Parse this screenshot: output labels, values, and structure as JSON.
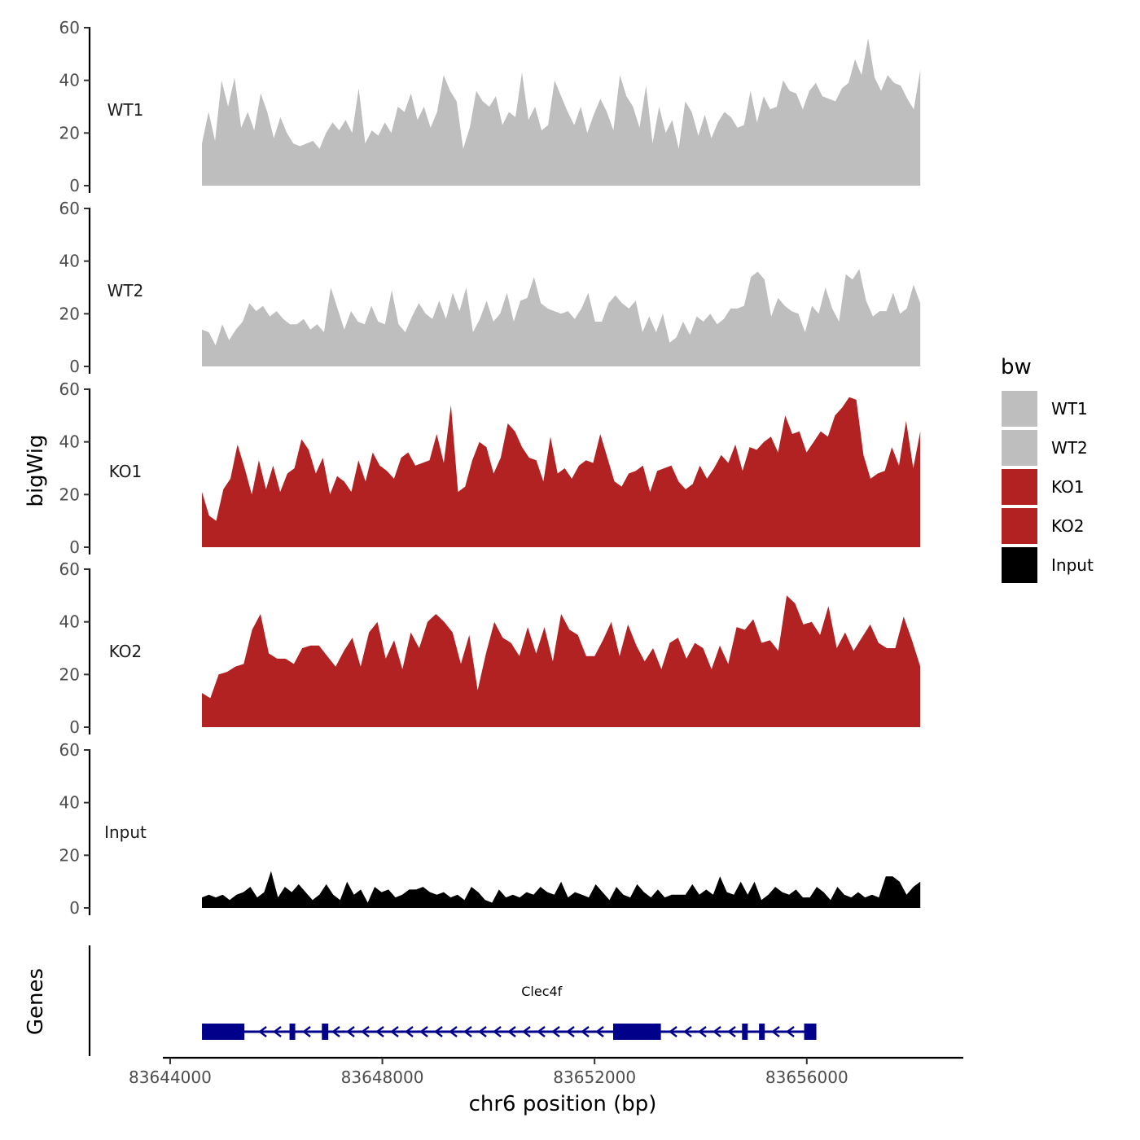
{
  "chart_data": {
    "type": "area",
    "ylabel": "bigWig",
    "xlabel": "chr6 position (bp)",
    "genes_label": "Genes",
    "xlim": [
      83643970,
      83658950
    ],
    "x_ticks": [
      {
        "value": 83644000,
        "label": "83644000"
      },
      {
        "value": 83648000,
        "label": "83648000"
      },
      {
        "value": 83652000,
        "label": "83652000"
      },
      {
        "value": 83656000,
        "label": "83656000"
      }
    ],
    "y_ticks": [
      0,
      20,
      40,
      60
    ],
    "ylim": [
      0,
      60
    ],
    "signal_start": 83644600,
    "signal_end": 83658140,
    "legend": {
      "title": "bw",
      "entries": [
        {
          "label": "WT1",
          "color": "#bebebe"
        },
        {
          "label": "WT2",
          "color": "#bebebe"
        },
        {
          "label": "KO1",
          "color": "#b22222"
        },
        {
          "label": "KO2",
          "color": "#b22222"
        },
        {
          "label": "Input",
          "color": "#000000"
        }
      ]
    },
    "series": [
      {
        "name": "WT1",
        "color": "#bebebe",
        "values": [
          16,
          28,
          17,
          40,
          30,
          41,
          22,
          28,
          21,
          35,
          28,
          18,
          26,
          20,
          16,
          15,
          16,
          17,
          14,
          20,
          24,
          21,
          25,
          20,
          37,
          16,
          21,
          19,
          24,
          20,
          30,
          28,
          35,
          25,
          30,
          22,
          28,
          42,
          36,
          32,
          14,
          22,
          36,
          32,
          30,
          34,
          23,
          28,
          26,
          43,
          25,
          30,
          21,
          23,
          40,
          34,
          28,
          23,
          30,
          20,
          27,
          33,
          28,
          21,
          42,
          34,
          30,
          22,
          38,
          16,
          30,
          20,
          25,
          14,
          32,
          28,
          19,
          27,
          18,
          24,
          28,
          26,
          22,
          23,
          36,
          24,
          34,
          29,
          30,
          40,
          36,
          35,
          29,
          36,
          39,
          34,
          33,
          32,
          37,
          39,
          48,
          42,
          56,
          41,
          36,
          42,
          39,
          38,
          33,
          29,
          44
        ]
      },
      {
        "name": "WT2",
        "color": "#bebebe",
        "values": [
          14,
          13,
          8,
          16,
          10,
          14,
          17,
          24,
          21,
          23,
          19,
          21,
          18,
          16,
          16,
          18,
          14,
          16,
          13,
          30,
          22,
          14,
          21,
          17,
          16,
          23,
          17,
          16,
          29,
          16,
          13,
          19,
          24,
          20,
          18,
          25,
          18,
          28,
          21,
          30,
          13,
          18,
          25,
          17,
          20,
          28,
          17,
          25,
          26,
          34,
          24,
          22,
          21,
          20,
          21,
          18,
          22,
          28,
          17,
          17,
          24,
          27,
          24,
          22,
          25,
          13,
          19,
          13,
          20,
          9,
          11,
          17,
          12,
          19,
          17,
          20,
          16,
          18,
          22,
          22,
          23,
          34,
          36,
          33,
          19,
          26,
          23,
          21,
          20,
          13,
          23,
          20,
          30,
          22,
          17,
          35,
          33,
          37,
          25,
          19,
          21,
          21,
          28,
          20,
          22,
          31,
          24
        ]
      },
      {
        "name": "KO1",
        "color": "#b22222",
        "values": [
          21,
          12,
          10,
          22,
          26,
          39,
          30,
          20,
          33,
          22,
          31,
          21,
          28,
          30,
          41,
          37,
          28,
          34,
          20,
          27,
          25,
          21,
          33,
          25,
          36,
          31,
          29,
          26,
          34,
          36,
          31,
          32,
          33,
          43,
          32,
          54,
          21,
          23,
          33,
          40,
          38,
          28,
          34,
          47,
          44,
          38,
          34,
          33,
          25,
          42,
          28,
          30,
          26,
          31,
          33,
          32,
          43,
          34,
          25,
          23,
          28,
          29,
          31,
          21,
          29,
          30,
          31,
          25,
          22,
          24,
          31,
          26,
          30,
          35,
          32,
          39,
          29,
          38,
          37,
          40,
          42,
          36,
          50,
          43,
          44,
          36,
          40,
          44,
          42,
          50,
          53,
          57,
          56,
          35,
          26,
          28,
          29,
          38,
          31,
          48,
          30,
          44
        ]
      },
      {
        "name": "KO2",
        "color": "#b22222",
        "values": [
          13,
          11,
          20,
          21,
          23,
          24,
          37,
          43,
          28,
          26,
          26,
          24,
          30,
          31,
          31,
          27,
          23,
          29,
          34,
          23,
          36,
          40,
          26,
          33,
          22,
          36,
          30,
          40,
          43,
          40,
          36,
          24,
          35,
          14,
          28,
          40,
          34,
          32,
          27,
          38,
          28,
          38,
          25,
          43,
          37,
          35,
          27,
          27,
          33,
          40,
          27,
          39,
          31,
          25,
          30,
          22,
          32,
          34,
          26,
          32,
          30,
          22,
          31,
          24,
          38,
          37,
          41,
          32,
          33,
          29,
          50,
          47,
          39,
          40,
          35,
          46,
          30,
          36,
          29,
          34,
          39,
          32,
          30,
          30,
          42,
          33,
          23
        ]
      },
      {
        "name": "Input",
        "color": "#000000",
        "values": [
          4,
          5,
          4,
          5,
          3,
          5,
          6,
          8,
          4,
          6,
          14,
          4,
          8,
          6,
          9,
          6,
          3,
          5,
          9,
          5,
          3,
          10,
          5,
          7,
          2,
          8,
          6,
          7,
          4,
          5,
          7,
          7,
          8,
          6,
          5,
          6,
          4,
          5,
          3,
          8,
          6,
          3,
          2,
          7,
          4,
          5,
          4,
          6,
          5,
          8,
          6,
          5,
          10,
          4,
          6,
          5,
          4,
          9,
          6,
          3,
          8,
          5,
          4,
          9,
          6,
          4,
          7,
          4,
          5,
          5,
          5,
          9,
          5,
          7,
          5,
          12,
          6,
          5,
          10,
          5,
          10,
          3,
          5,
          8,
          6,
          5,
          7,
          4,
          4,
          8,
          6,
          3,
          8,
          5,
          4,
          6,
          4,
          5,
          4,
          12,
          12,
          10,
          5,
          8,
          10
        ]
      }
    ],
    "gene": {
      "name": "Clec4f",
      "color": "#00008b",
      "strand": "-",
      "start": 83644600,
      "end": 83656180,
      "exons": [
        [
          83644600,
          83645400
        ],
        [
          83646250,
          83646320
        ],
        [
          83646860,
          83646980
        ],
        [
          83652350,
          83653250
        ],
        [
          83654780,
          83654840
        ],
        [
          83655100,
          83655200
        ],
        [
          83655950,
          83656180
        ]
      ]
    }
  }
}
